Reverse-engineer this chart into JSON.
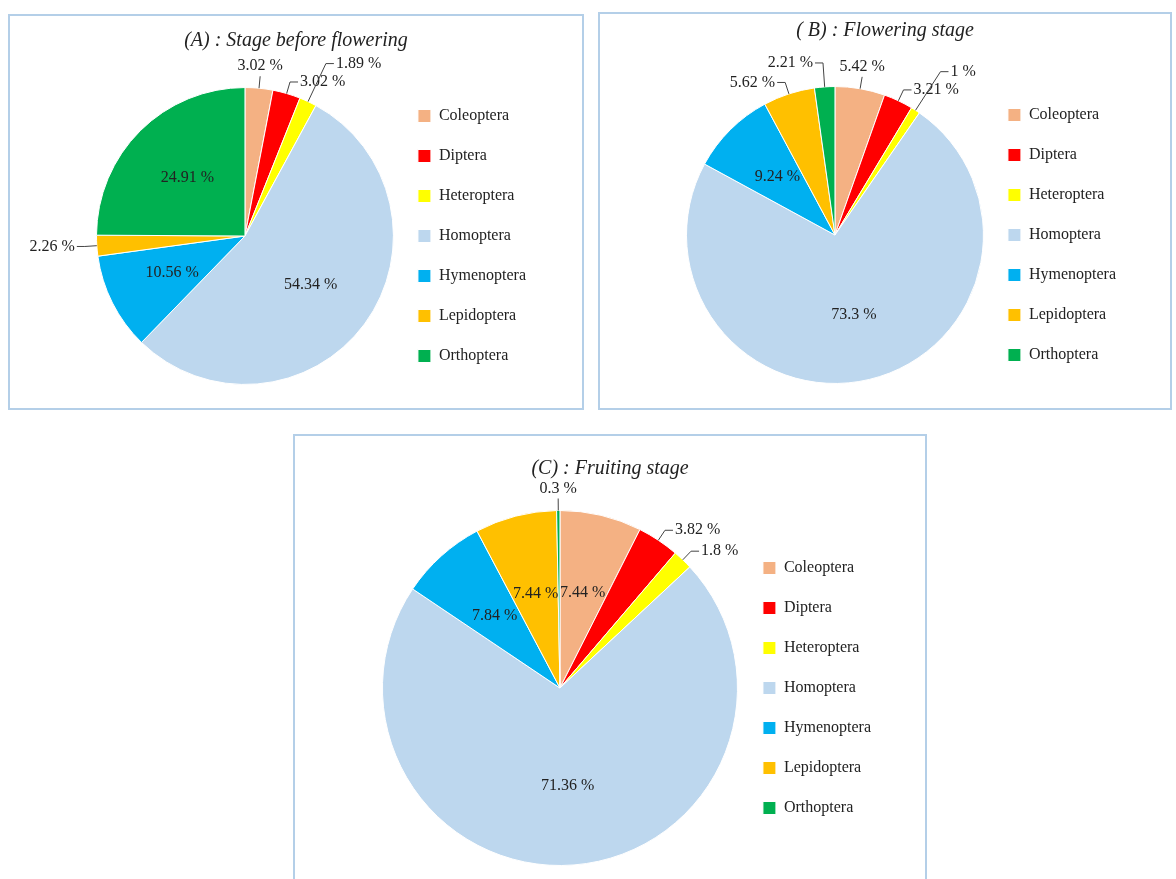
{
  "chart_data": [
    {
      "type": "pie",
      "title": "(A) : Stage before flowering",
      "categories": [
        "Coleoptera",
        "Diptera",
        "Heteroptera",
        "Homoptera",
        "Hymenoptera",
        "Lepidoptera",
        "Orthoptera"
      ],
      "values": [
        3.02,
        3.02,
        1.89,
        54.34,
        10.56,
        2.26,
        24.91
      ],
      "colors": [
        "#f4b183",
        "#ff0000",
        "#ffff00",
        "#bdd7ee",
        "#00b0f0",
        "#ffc000",
        "#00b050"
      ],
      "value_labels": [
        "3.02 %",
        "3.02 %",
        "1.89 %",
        "54.34 %",
        "10.56 %",
        "2.26 %",
        "24.91 %"
      ],
      "legend": "right"
    },
    {
      "type": "pie",
      "title": "( B) : Flowering stage",
      "categories": [
        "Coleoptera",
        "Diptera",
        "Heteroptera",
        "Homoptera",
        "Hymenoptera",
        "Lepidoptera",
        "Orthoptera"
      ],
      "values": [
        5.42,
        3.21,
        1,
        73.3,
        9.24,
        5.62,
        2.21
      ],
      "colors": [
        "#f4b183",
        "#ff0000",
        "#ffff00",
        "#bdd7ee",
        "#00b0f0",
        "#ffc000",
        "#00b050"
      ],
      "value_labels": [
        "5.42 %",
        "3.21 %",
        "1 %",
        "73.3 %",
        "9.24 %",
        "5.62 %",
        "2.21 %"
      ],
      "legend": "right"
    },
    {
      "type": "pie",
      "title": "(C) : Fruiting stage",
      "categories": [
        "Coleoptera",
        "Diptera",
        "Heteroptera",
        "Homoptera",
        "Hymenoptera",
        "Lepidoptera",
        "Orthoptera"
      ],
      "values": [
        7.44,
        3.82,
        1.8,
        71.36,
        7.84,
        7.44,
        0.3
      ],
      "colors": [
        "#f4b183",
        "#ff0000",
        "#ffff00",
        "#bdd7ee",
        "#00b0f0",
        "#ffc000",
        "#00b050"
      ],
      "value_labels": [
        "7.44 %",
        "3.82 %",
        "1.8 %",
        "71.36 %",
        "7.84 %",
        "7.44 %",
        "0.3 %"
      ],
      "legend": "right"
    }
  ]
}
